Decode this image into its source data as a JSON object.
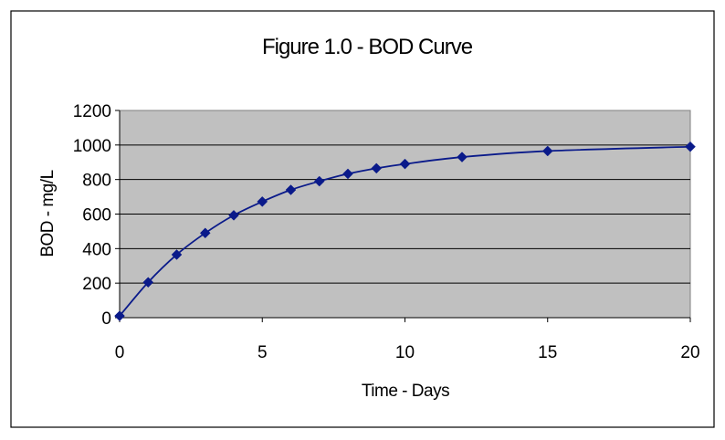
{
  "chart_data": {
    "type": "line",
    "title": "Figure 1.0 - BOD Curve",
    "xlabel": "Time - Days",
    "ylabel": "BOD - mg/L",
    "xlim": [
      0,
      20
    ],
    "ylim": [
      0,
      1200
    ],
    "xticks": [
      "0",
      "5",
      "10",
      "15",
      "20"
    ],
    "yticks": [
      "0",
      "200",
      "400",
      "600",
      "800",
      "1000",
      "1200"
    ],
    "grid": "horizontal",
    "legend": "none",
    "colors": {
      "line": "#0A1A8A",
      "marker": "#0A1A8A",
      "plot_background": "#C0C0C0",
      "gridline": "#000000"
    },
    "series": [
      {
        "x": [
          0,
          1,
          2,
          3,
          4,
          5,
          6,
          7,
          8,
          9,
          10,
          12,
          15,
          20
        ],
        "values": [
          10,
          205,
          365,
          490,
          593,
          672,
          740,
          790,
          833,
          865,
          890,
          930,
          965,
          990
        ]
      }
    ]
  }
}
